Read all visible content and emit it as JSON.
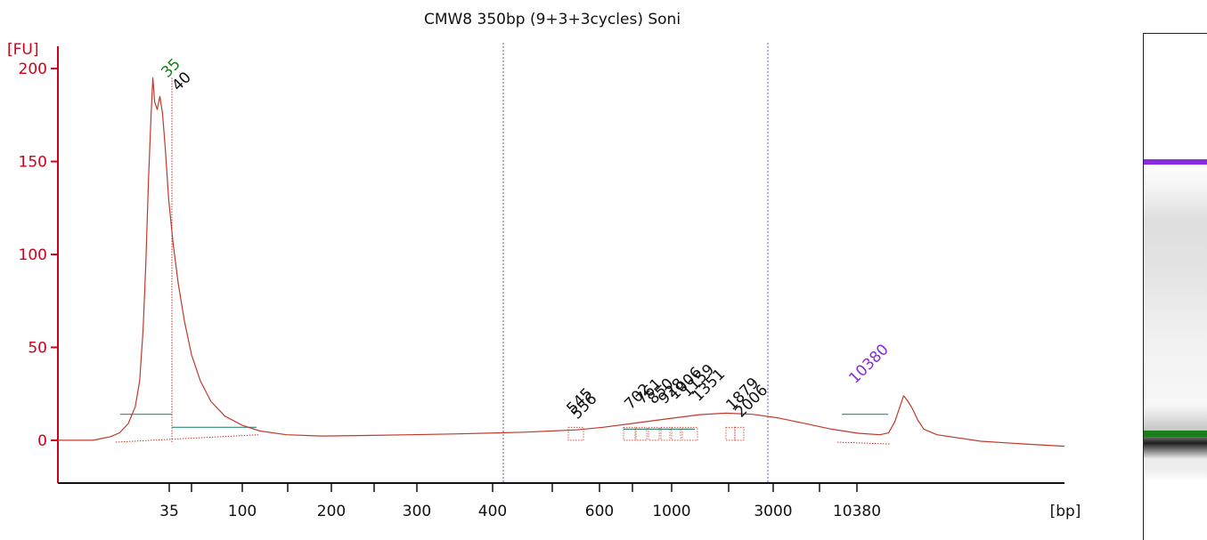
{
  "title": "CMW8 350bp (9+3+3cycles) Soni",
  "colors": {
    "axis": "#d0021b",
    "trace": "#c0392b",
    "marker_low": "#1a7f1a",
    "marker_high": "#8a2be2",
    "baseline": "#2e8b7a",
    "guide": "#6a5acd"
  },
  "chart_data": {
    "type": "line",
    "title": "CMW8 350bp (9+3+3cycles) Soni",
    "xlabel": "[bp]",
    "ylabel": "[FU]",
    "ylim": [
      -23,
      212
    ],
    "yticks": [
      0,
      50,
      100,
      150,
      200
    ],
    "x_tick_labels": [
      "35",
      "100",
      "200",
      "300",
      "400",
      "600",
      "1000",
      "3000",
      "10380"
    ],
    "region_bounds_bp": [
      400,
      3000
    ],
    "series": [
      {
        "points": [
          [
            0,
            0
          ],
          [
            25,
            0
          ],
          [
            40,
            0
          ],
          [
            50,
            1
          ],
          [
            60,
            2
          ],
          [
            70,
            4
          ],
          [
            80,
            9
          ],
          [
            88,
            18
          ],
          [
            93,
            32
          ],
          [
            97,
            60
          ],
          [
            100,
            95
          ],
          [
            103,
            140
          ],
          [
            106,
            175
          ],
          [
            108,
            195
          ],
          [
            110,
            182
          ],
          [
            113,
            178
          ],
          [
            116,
            185
          ],
          [
            119,
            176
          ],
          [
            122,
            158
          ],
          [
            126,
            130
          ],
          [
            131,
            106
          ],
          [
            137,
            84
          ],
          [
            144,
            64
          ],
          [
            152,
            46
          ],
          [
            162,
            32
          ],
          [
            174,
            21
          ],
          [
            190,
            13
          ],
          [
            210,
            8
          ],
          [
            230,
            5
          ],
          [
            260,
            3
          ],
          [
            300,
            2.3
          ],
          [
            350,
            2.6
          ],
          [
            400,
            3
          ],
          [
            450,
            3.4
          ],
          [
            500,
            4
          ],
          [
            530,
            4.4
          ],
          [
            560,
            5
          ],
          [
            590,
            5.6
          ],
          [
            620,
            7
          ],
          [
            660,
            9.5
          ],
          [
            700,
            12
          ],
          [
            730,
            13.8
          ],
          [
            760,
            14.6
          ],
          [
            790,
            14
          ],
          [
            820,
            12
          ],
          [
            850,
            9
          ],
          [
            880,
            6
          ],
          [
            910,
            3.8
          ],
          [
            935,
            3
          ],
          [
            945,
            4
          ],
          [
            952,
            10
          ],
          [
            957,
            17
          ],
          [
            962,
            24
          ],
          [
            967,
            21
          ],
          [
            972,
            17
          ],
          [
            978,
            11
          ],
          [
            985,
            6
          ],
          [
            1000,
            3
          ],
          [
            1050,
            -0.5
          ],
          [
            1100,
            -2
          ],
          [
            1145,
            -3.2
          ]
        ]
      }
    ],
    "peaks": [
      {
        "label": "35",
        "size_bp": 35,
        "fu": 195,
        "color": "green"
      },
      {
        "label": "40",
        "size_bp": 40,
        "fu": 186,
        "color": "black"
      },
      {
        "label": "545",
        "size_bp": 545,
        "fu": 6,
        "color": "black"
      },
      {
        "label": "556",
        "size_bp": 556,
        "fu": 6,
        "color": "black"
      },
      {
        "label": "702",
        "size_bp": 702,
        "fu": 10,
        "color": "black"
      },
      {
        "label": "761",
        "size_bp": 761,
        "fu": 11,
        "color": "black"
      },
      {
        "label": "850",
        "size_bp": 850,
        "fu": 12,
        "color": "black"
      },
      {
        "label": "928",
        "size_bp": 928,
        "fu": 13,
        "color": "black"
      },
      {
        "label": "1006",
        "size_bp": 1006,
        "fu": 14,
        "color": "black"
      },
      {
        "label": "1159",
        "size_bp": 1159,
        "fu": 14,
        "color": "black"
      },
      {
        "label": "1351",
        "size_bp": 1351,
        "fu": 13,
        "color": "black"
      },
      {
        "label": "1879",
        "size_bp": 1879,
        "fu": 8,
        "color": "black"
      },
      {
        "label": "2006",
        "size_bp": 2006,
        "fu": 7,
        "color": "black"
      },
      {
        "label": "10380",
        "size_bp": 10380,
        "fu": 24,
        "color": "purple"
      }
    ],
    "grid": false,
    "legend": "none"
  }
}
